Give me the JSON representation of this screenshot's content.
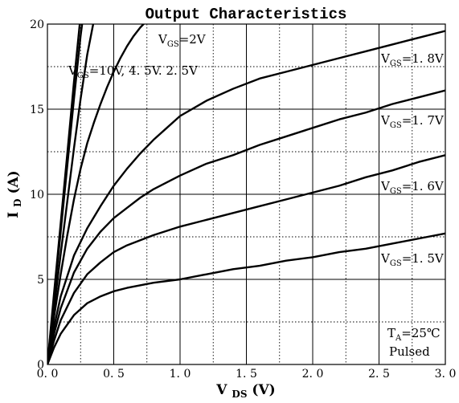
{
  "chart_data": {
    "type": "line",
    "title": "Output Characteristics",
    "xlabel": {
      "main": "V",
      "sub": "DS",
      "unit": "(V)"
    },
    "ylabel": {
      "main": "I",
      "sub": "D",
      "unit": "(A)"
    },
    "xlim": [
      0,
      3.0
    ],
    "ylim": [
      0,
      20
    ],
    "x_ticks": [
      0,
      0.5,
      1.0,
      1.5,
      2.0,
      2.5,
      3.0
    ],
    "x_tick_labels": [
      "0. 0",
      "0. 5",
      "1. 0",
      "1. 5",
      "2. 0",
      "2. 5",
      "3. 0"
    ],
    "y_ticks": [
      0,
      5,
      10,
      15,
      20
    ],
    "y_tick_labels": [
      "0",
      "5",
      "10",
      "15",
      "20"
    ],
    "grid": {
      "major_solid": true,
      "minor_dotted": true
    },
    "line_color": "#000000",
    "series": [
      {
        "vgs": "10V",
        "x": [
          0,
          0.05,
          0.1,
          0.15,
          0.2,
          0.25
        ],
        "y": [
          0,
          4.2,
          8.3,
          12.4,
          16.6,
          20.5
        ]
      },
      {
        "vgs": "4.5V",
        "x": [
          0,
          0.05,
          0.1,
          0.15,
          0.2,
          0.25,
          0.27
        ],
        "y": [
          0,
          3.9,
          7.8,
          11.7,
          15.6,
          19.3,
          20.5
        ]
      },
      {
        "vgs": "2.5V",
        "x": [
          0,
          0.05,
          0.1,
          0.15,
          0.2,
          0.25,
          0.3,
          0.35,
          0.38
        ],
        "y": [
          0,
          3.3,
          6.5,
          9.6,
          12.7,
          15.6,
          18.2,
          20.2,
          20.5
        ]
      },
      {
        "vgs": "2V",
        "x": [
          0,
          0.05,
          0.1,
          0.15,
          0.2,
          0.25,
          0.3,
          0.35,
          0.4,
          0.45,
          0.5,
          0.55,
          0.6,
          0.65,
          0.7,
          0.75,
          0.78
        ],
        "y": [
          0,
          2.8,
          5.3,
          7.6,
          9.7,
          11.5,
          13.0,
          14.2,
          15.3,
          16.3,
          17.2,
          18.0,
          18.7,
          19.3,
          19.8,
          20.2,
          20.5
        ]
      },
      {
        "name": "VGS=1.8V",
        "x": [
          0,
          0.05,
          0.1,
          0.2,
          0.3,
          0.4,
          0.5,
          0.6,
          0.7,
          0.8,
          0.9,
          1.0,
          1.2,
          1.4,
          1.6,
          1.8,
          2.0,
          2.2,
          2.4,
          2.6,
          2.8,
          3.0
        ],
        "y": [
          0,
          2.2,
          4.0,
          6.4,
          8.0,
          9.3,
          10.5,
          11.5,
          12.4,
          13.2,
          13.9,
          14.6,
          15.5,
          16.2,
          16.8,
          17.2,
          17.6,
          18.0,
          18.4,
          18.8,
          19.2,
          19.6
        ]
      },
      {
        "name": "VGS=1.7V",
        "x": [
          0,
          0.05,
          0.1,
          0.2,
          0.3,
          0.4,
          0.5,
          0.6,
          0.7,
          0.8,
          1.0,
          1.2,
          1.4,
          1.6,
          1.8,
          2.0,
          2.2,
          2.4,
          2.6,
          2.8,
          3.0
        ],
        "y": [
          0,
          1.8,
          3.3,
          5.4,
          6.8,
          7.8,
          8.6,
          9.2,
          9.8,
          10.3,
          11.1,
          11.8,
          12.3,
          12.9,
          13.4,
          13.9,
          14.4,
          14.8,
          15.3,
          15.7,
          16.1
        ]
      },
      {
        "name": "VGS=1.6V",
        "x": [
          0,
          0.05,
          0.1,
          0.2,
          0.3,
          0.4,
          0.5,
          0.6,
          0.8,
          1.0,
          1.2,
          1.4,
          1.6,
          1.8,
          2.0,
          2.2,
          2.4,
          2.6,
          2.8,
          3.0
        ],
        "y": [
          0,
          1.4,
          2.6,
          4.2,
          5.3,
          6.0,
          6.6,
          7.0,
          7.6,
          8.1,
          8.5,
          8.9,
          9.3,
          9.7,
          10.1,
          10.5,
          11.0,
          11.4,
          11.9,
          12.3
        ]
      },
      {
        "name": "VGS=1.5V",
        "x": [
          0,
          0.05,
          0.1,
          0.2,
          0.3,
          0.4,
          0.5,
          0.6,
          0.8,
          1.0,
          1.2,
          1.4,
          1.6,
          1.8,
          2.0,
          2.2,
          2.4,
          2.6,
          2.8,
          3.0
        ],
        "y": [
          0,
          1.0,
          1.8,
          2.9,
          3.6,
          4.0,
          4.3,
          4.5,
          4.8,
          5.0,
          5.3,
          5.6,
          5.8,
          6.1,
          6.3,
          6.6,
          6.8,
          7.1,
          7.4,
          7.7
        ]
      }
    ],
    "annotations": [
      {
        "id": "vgs2",
        "main": "V",
        "sub": "GS",
        "rest": "=2V"
      },
      {
        "id": "vgs-group",
        "main": "V",
        "sub": "GS",
        "rest": "=10V, 4. 5V. 2. 5V"
      },
      {
        "id": "vgs18",
        "main": "V",
        "sub": "GS",
        "rest": "=1. 8V"
      },
      {
        "id": "vgs17",
        "main": "V",
        "sub": "GS",
        "rest": "=1. 7V"
      },
      {
        "id": "vgs16",
        "main": "V",
        "sub": "GS",
        "rest": "=1. 6V"
      },
      {
        "id": "vgs15",
        "main": "V",
        "sub": "GS",
        "rest": "=1. 5V"
      },
      {
        "id": "ta",
        "main": "T",
        "sub": "A",
        "rest": "=25℃"
      },
      {
        "id": "pulsed",
        "text": "Pulsed"
      }
    ]
  }
}
